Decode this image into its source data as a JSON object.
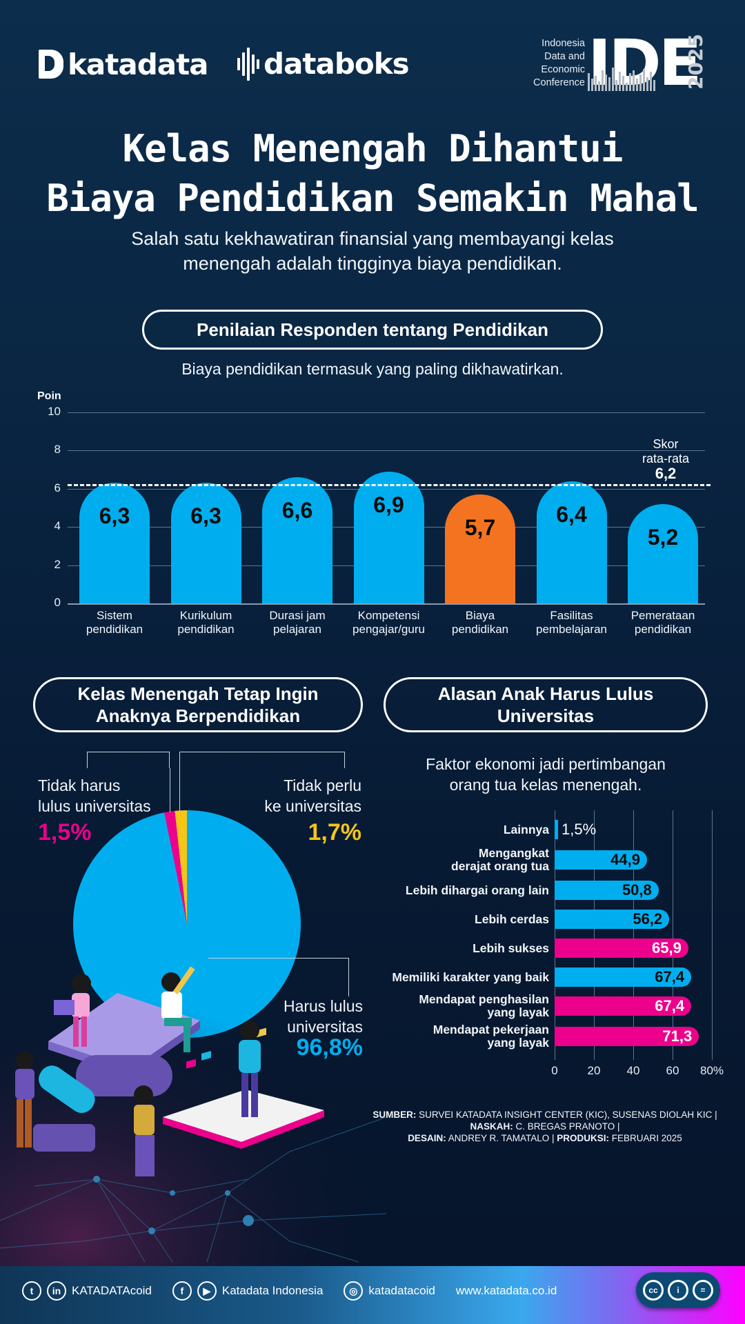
{
  "header": {
    "brand_katadata": "katadata",
    "brand_databoks": "databoks",
    "ide_logo": {
      "subtitle_lines": [
        "Indonesia",
        "Data and",
        "Economic",
        "Conference"
      ],
      "letters": "IDE",
      "year": "2025"
    }
  },
  "title": {
    "line1": "Kelas Menengah Dihantui",
    "line2": "Biaya Pendidikan Semakin Mahal"
  },
  "subtitle": {
    "line1": "Salah satu kekhawatiran finansial yang membayangi kelas",
    "line2": "menengah adalah tingginya biaya pendidikan."
  },
  "section1": {
    "heading": "Penilaian Responden tentang Pendidikan",
    "caption": "Biaya pendidikan termasuk yang paling dikhawatirkan.",
    "y_axis_label": "Poin",
    "avg_label_line1": "Skor",
    "avg_label_line2": "rata-rata",
    "avg_value": "6,2"
  },
  "section2": {
    "heading_line1": "Kelas Menengah Tetap Ingin",
    "heading_line2": "Anaknya Berpendidikan"
  },
  "section3": {
    "heading_line1": "Alasan Anak Harus Lulus",
    "heading_line2": "Universitas",
    "caption_line1": "Faktor ekonomi jadi pertimbangan",
    "caption_line2": "orang tua kelas menengah."
  },
  "colors": {
    "blue": "#00aeef",
    "orange": "#f47321",
    "magenta": "#ec008c",
    "yellow": "#f5c518",
    "background": "#0a2744"
  },
  "chart_data": [
    {
      "type": "bar",
      "title": "Penilaian Responden tentang Pendidikan",
      "ylabel": "Poin",
      "xlabel": "",
      "ylim": [
        0,
        10
      ],
      "yticks": [
        0,
        2,
        4,
        6,
        8,
        10
      ],
      "grid": true,
      "categories": [
        "Sistem pendidikan",
        "Kurikulum pendidikan",
        "Durasi jam pelajaran",
        "Kompetensi pengajar/guru",
        "Biaya pendidikan",
        "Fasilitas pembelajaran",
        "Pemerataan pendidikan"
      ],
      "category_lines": [
        [
          "Sistem",
          "pendidikan"
        ],
        [
          "Kurikulum",
          "pendidikan"
        ],
        [
          "Durasi jam",
          "pelajaran"
        ],
        [
          "Kompetensi",
          "pengajar/guru"
        ],
        [
          "Biaya",
          "pendidikan"
        ],
        [
          "Fasilitas",
          "pembelajaran"
        ],
        [
          "Pemerataan",
          "pendidikan"
        ]
      ],
      "values": [
        6.3,
        6.3,
        6.6,
        6.9,
        5.7,
        6.4,
        5.2
      ],
      "value_labels": [
        "6,3",
        "6,3",
        "6,6",
        "6,9",
        "5,7",
        "6,4",
        "5,2"
      ],
      "highlight_index": 4,
      "reference_line": {
        "label": "Skor rata-rata",
        "value": 6.2,
        "value_label": "6,2",
        "style": "dashed"
      }
    },
    {
      "type": "pie",
      "title": "Kelas Menengah Tetap Ingin Anaknya Berpendidikan",
      "slices": [
        {
          "label": "Harus lulus universitas",
          "label_lines": [
            "Harus lulus",
            "universitas"
          ],
          "value": 96.8,
          "value_label": "96,8%",
          "color": "#00aeef"
        },
        {
          "label": "Tidak harus lulus universitas",
          "label_lines": [
            "Tidak harus",
            "lulus universitas"
          ],
          "value": 1.5,
          "value_label": "1,5%",
          "color": "#ec008c"
        },
        {
          "label": "Tidak perlu ke universitas",
          "label_lines": [
            "Tidak perlu",
            "ke universitas"
          ],
          "value": 1.7,
          "value_label": "1,7%",
          "color": "#f5c518"
        }
      ]
    },
    {
      "type": "bar",
      "orientation": "horizontal",
      "title": "Alasan Anak Harus Lulus Universitas",
      "subtitle": "Faktor ekonomi jadi pertimbangan orang tua kelas menengah.",
      "xlim": [
        0,
        80
      ],
      "xticks": [
        "0",
        "20",
        "40",
        "60",
        "80%"
      ],
      "grid": true,
      "categories": [
        "Lainnya",
        "Mengangkat derajat orang tua",
        "Lebih dihargai orang lain",
        "Lebih cerdas",
        "Lebih sukses",
        "Memiliki karakter yang baik",
        "Mendapat penghasilan yang layak",
        "Mendapat pekerjaan yang layak"
      ],
      "category_lines": [
        [
          "Lainnya"
        ],
        [
          "Mengangkat",
          "derajat orang tua"
        ],
        [
          "Lebih dihargai orang lain"
        ],
        [
          "Lebih cerdas"
        ],
        [
          "Lebih sukses"
        ],
        [
          "Memiliki karakter yang baik"
        ],
        [
          "Mendapat penghasilan",
          "yang layak"
        ],
        [
          "Mendapat pekerjaan",
          "yang layak"
        ]
      ],
      "values": [
        1.5,
        44.9,
        50.8,
        56.2,
        65.9,
        67.4,
        67.4,
        71.3
      ],
      "value_labels": [
        "1,5%",
        "44,9",
        "50,8",
        "56,2",
        "65,9",
        "67,4",
        "67,4",
        "71,3"
      ],
      "bar_colors": [
        "#00aeef",
        "#00aeef",
        "#00aeef",
        "#00aeef",
        "#ec008c",
        "#00aeef",
        "#ec008c",
        "#ec008c"
      ]
    }
  ],
  "source": {
    "sumber_label": "SUMBER:",
    "sumber_text": " SURVEI KATADATA INSIGHT CENTER (KIC), SUSENAS DIOLAH KIC | ",
    "naskah_label": "NASKAH:",
    "naskah_text": " C. BREGAS PRANOTO | ",
    "desain_label": "DESAIN:",
    "desain_text": " ANDREY R. TAMATALO | ",
    "produksi_label": "PRODUKSI:",
    "produksi_text": " FEBRUARI 2025"
  },
  "footer": {
    "handle1": "KATADATAcoid",
    "handle2": "Katadata Indonesia",
    "handle3": "katadatacoid",
    "website": "www.katadata.co.id",
    "icons": {
      "twitter": "t",
      "linkedin": "in",
      "facebook": "f",
      "youtube": "▶",
      "instagram": "◎",
      "cc": "cc",
      "by": "i",
      "nd": "="
    }
  }
}
